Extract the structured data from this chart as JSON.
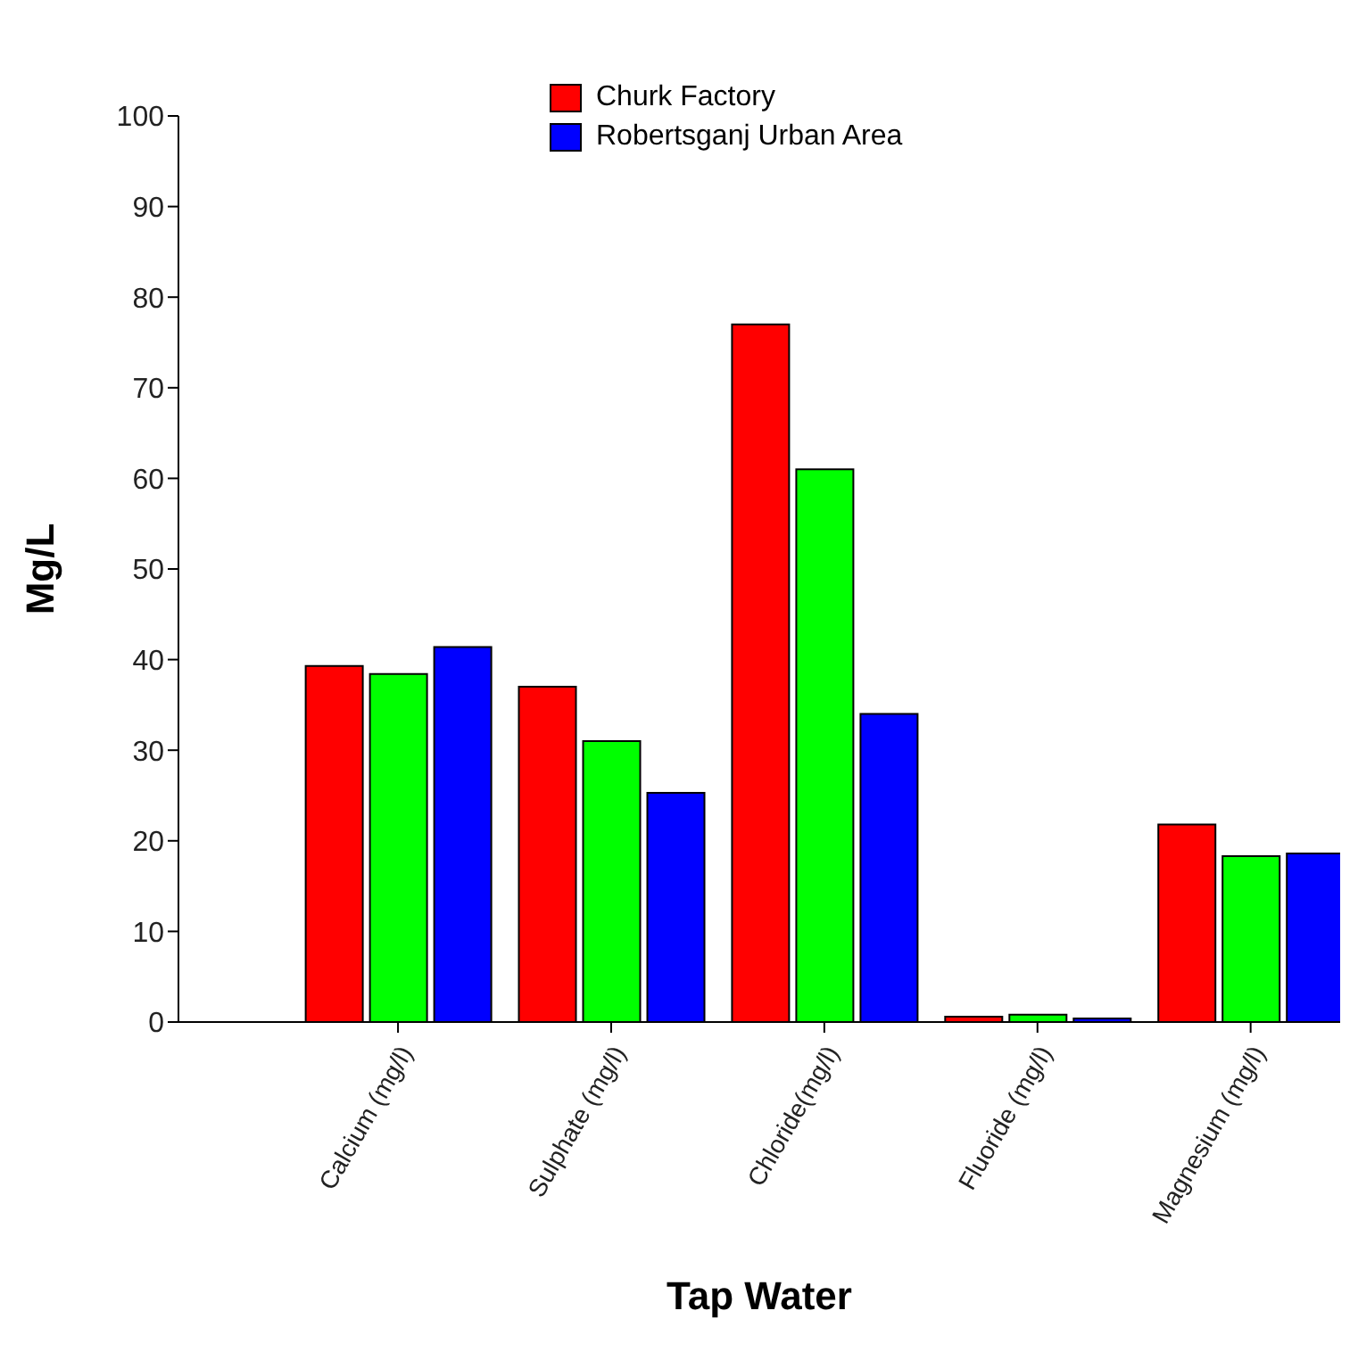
{
  "chart_data": {
    "type": "bar",
    "xlabel": "Tap Water",
    "ylabel": "Mg/L",
    "categories": [
      "Calcium (mg/l)",
      "Sulphate (mg/l)",
      "Chloride(mg/l)",
      "Fluoride (mg/l)",
      "Magnesium (mg/l)"
    ],
    "series": [
      {
        "name": "Churk Factory",
        "color": "#ff0000",
        "values": [
          39.3,
          37,
          77,
          0.6,
          21.8
        ]
      },
      {
        "color": "#00ff00",
        "values": [
          38.4,
          31,
          61,
          0.8,
          18.3
        ]
      },
      {
        "name": "Robertsganj Urban Area",
        "color": "#0000ff",
        "values": [
          41.4,
          25.3,
          34,
          0.4,
          18.6
        ]
      }
    ],
    "ylim": [
      0,
      100
    ],
    "yticks": [
      0,
      10,
      20,
      30,
      40,
      50,
      60,
      70,
      80,
      90,
      100
    ],
    "legend": "top",
    "grid": false
  }
}
